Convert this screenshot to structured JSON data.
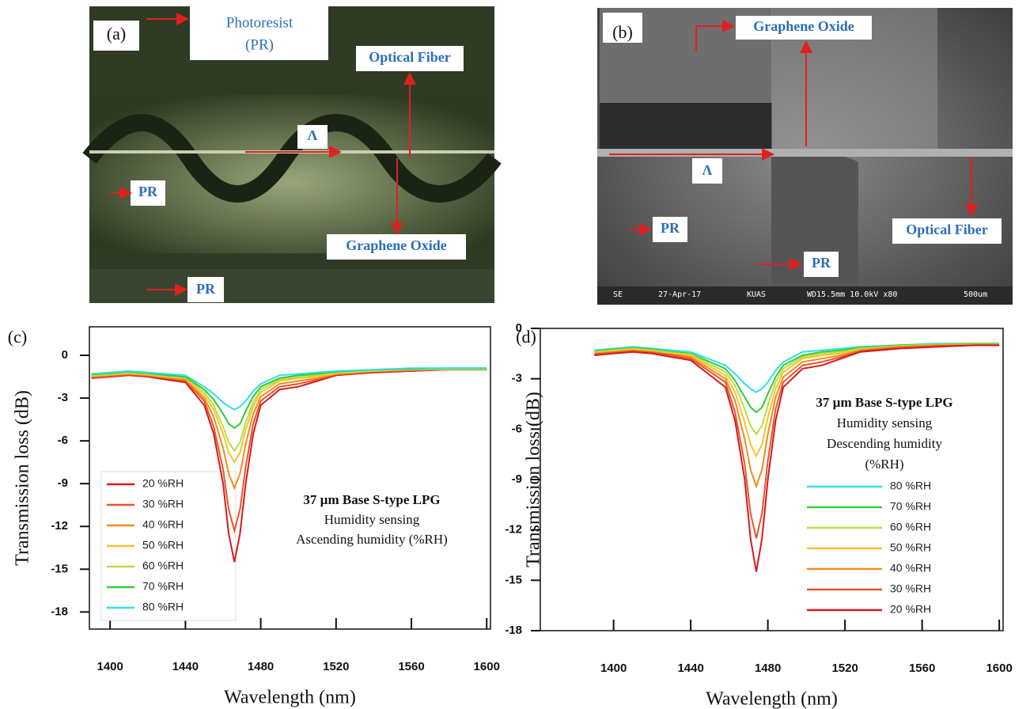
{
  "panels": {
    "a": {
      "label": "(a)",
      "annotations": [
        "Photoresist",
        "(PR)",
        "Optical Fiber",
        "Λ",
        "PR",
        "Graphene Oxide",
        "PR"
      ]
    },
    "b": {
      "label": "(b)",
      "annotations": [
        "Graphene Oxide",
        "Λ",
        "PR",
        "Optical Fiber",
        "PR"
      ],
      "footer": [
        "SE",
        "27-Apr-17",
        "KUAS",
        "WD15.5mm 10.0kV x80",
        "500um"
      ]
    }
  },
  "chart_data": [
    {
      "type": "line",
      "panel_label": "(c)",
      "xlabel": "Wavelength (nm)",
      "ylabel": "Transmission loss (dB)",
      "xlim": [
        1389,
        1602
      ],
      "xticks": [
        1400,
        1440,
        1480,
        1520,
        1560,
        1600
      ],
      "ylim": [
        -19.2,
        2
      ],
      "yticks": [
        0,
        -3,
        -6,
        -9,
        -12,
        -15,
        -18
      ],
      "annotations": [
        "37 µm Base S-type LPG",
        "Humidity sensing",
        "Ascending humidity  (%RH)"
      ],
      "x": [
        1390,
        1400,
        1410,
        1420,
        1430,
        1440,
        1450,
        1455,
        1460,
        1463,
        1466,
        1469,
        1472,
        1476,
        1480,
        1490,
        1500,
        1510,
        1520,
        1540,
        1560,
        1580,
        1600
      ],
      "series": [
        {
          "name": "20 %RH",
          "color": "#d7191c",
          "values": [
            -1.6,
            -1.5,
            -1.4,
            -1.5,
            -1.7,
            -1.9,
            -3.5,
            -5.5,
            -9.0,
            -12.5,
            -14.5,
            -12.5,
            -9.0,
            -5.5,
            -3.5,
            -2.4,
            -2.2,
            -1.8,
            -1.4,
            -1.2,
            -1.1,
            -1.0,
            -1.0
          ]
        },
        {
          "name": "30 %RH",
          "color": "#e8552a",
          "values": [
            -1.55,
            -1.45,
            -1.35,
            -1.45,
            -1.6,
            -1.8,
            -3.2,
            -5.0,
            -8.0,
            -10.8,
            -12.3,
            -10.8,
            -7.8,
            -4.8,
            -3.2,
            -2.2,
            -2.0,
            -1.7,
            -1.35,
            -1.15,
            -1.05,
            -1.0,
            -1.0
          ]
        },
        {
          "name": "40 %RH",
          "color": "#f08c1e",
          "values": [
            -1.5,
            -1.4,
            -1.3,
            -1.4,
            -1.55,
            -1.7,
            -3.0,
            -4.3,
            -6.5,
            -8.3,
            -9.3,
            -8.3,
            -6.2,
            -4.1,
            -2.9,
            -2.0,
            -1.8,
            -1.6,
            -1.3,
            -1.1,
            -1.0,
            -1.0,
            -1.0
          ]
        },
        {
          "name": "50 %RH",
          "color": "#f5c430",
          "values": [
            -1.45,
            -1.35,
            -1.25,
            -1.35,
            -1.5,
            -1.6,
            -2.8,
            -3.8,
            -5.5,
            -6.8,
            -7.5,
            -6.8,
            -5.2,
            -3.6,
            -2.6,
            -1.8,
            -1.6,
            -1.5,
            -1.25,
            -1.1,
            -1.0,
            -0.95,
            -0.95
          ]
        },
        {
          "name": "60 %RH",
          "color": "#b5e045",
          "values": [
            -1.4,
            -1.3,
            -1.2,
            -1.3,
            -1.45,
            -1.55,
            -2.6,
            -3.5,
            -5.0,
            -6.1,
            -6.7,
            -6.1,
            -4.7,
            -3.3,
            -2.4,
            -1.7,
            -1.5,
            -1.4,
            -1.2,
            -1.05,
            -0.95,
            -0.95,
            -0.95
          ]
        },
        {
          "name": "70 %RH",
          "color": "#33cc33",
          "values": [
            -1.35,
            -1.25,
            -1.15,
            -1.25,
            -1.4,
            -1.5,
            -2.4,
            -3.1,
            -4.1,
            -4.8,
            -5.1,
            -4.8,
            -3.9,
            -2.9,
            -2.2,
            -1.6,
            -1.4,
            -1.3,
            -1.15,
            -1.0,
            -0.95,
            -0.9,
            -0.9
          ]
        },
        {
          "name": "80 %RH",
          "color": "#33ddee",
          "values": [
            -1.3,
            -1.2,
            -1.1,
            -1.2,
            -1.3,
            -1.4,
            -2.2,
            -2.7,
            -3.3,
            -3.6,
            -3.8,
            -3.6,
            -3.2,
            -2.5,
            -2.0,
            -1.4,
            -1.3,
            -1.2,
            -1.1,
            -1.0,
            -0.9,
            -0.9,
            -0.9
          ]
        }
      ]
    },
    {
      "type": "line",
      "panel_label": "(d)",
      "xlabel": "Wavelength (nm)",
      "ylabel": "Transmission loss (dB)",
      "xlim": [
        1362,
        1602
      ],
      "xticks": [
        1400,
        1440,
        1480,
        1520,
        1560,
        1600
      ],
      "ylim": [
        -18,
        0
      ],
      "yticks": [
        0,
        -3,
        -6,
        -9,
        -12,
        -15,
        -18
      ],
      "annotations": [
        "37 µm Base S-type LPG",
        "Humidity sensing",
        "Descending humidity",
        "(%RH)"
      ],
      "x": [
        1390,
        1400,
        1410,
        1420,
        1430,
        1440,
        1458,
        1463,
        1468,
        1471,
        1474,
        1477,
        1480,
        1484,
        1488,
        1498,
        1508,
        1518,
        1528,
        1548,
        1568,
        1588,
        1600
      ],
      "series": [
        {
          "name": "80 %RH",
          "color": "#33ddee",
          "values": [
            -1.3,
            -1.2,
            -1.1,
            -1.2,
            -1.3,
            -1.4,
            -2.2,
            -2.7,
            -3.3,
            -3.6,
            -3.8,
            -3.6,
            -3.2,
            -2.5,
            -2.0,
            -1.4,
            -1.3,
            -1.2,
            -1.1,
            -1.0,
            -0.9,
            -0.9,
            -0.9
          ]
        },
        {
          "name": "70 %RH",
          "color": "#33cc33",
          "values": [
            -1.35,
            -1.25,
            -1.15,
            -1.25,
            -1.4,
            -1.5,
            -2.4,
            -3.1,
            -4.1,
            -4.7,
            -5.0,
            -4.7,
            -3.9,
            -2.9,
            -2.2,
            -1.6,
            -1.4,
            -1.3,
            -1.15,
            -1.0,
            -0.95,
            -0.9,
            -0.9
          ]
        },
        {
          "name": "60 %RH",
          "color": "#b5e045",
          "values": [
            -1.4,
            -1.3,
            -1.2,
            -1.3,
            -1.45,
            -1.55,
            -2.6,
            -3.4,
            -4.8,
            -5.8,
            -6.3,
            -5.8,
            -4.6,
            -3.2,
            -2.4,
            -1.7,
            -1.5,
            -1.4,
            -1.2,
            -1.05,
            -0.95,
            -0.95,
            -0.95
          ]
        },
        {
          "name": "50 %RH",
          "color": "#f5c430",
          "values": [
            -1.45,
            -1.35,
            -1.25,
            -1.35,
            -1.5,
            -1.6,
            -2.8,
            -3.8,
            -5.6,
            -6.9,
            -7.6,
            -6.9,
            -5.3,
            -3.6,
            -2.6,
            -1.8,
            -1.6,
            -1.5,
            -1.25,
            -1.1,
            -1.0,
            -0.95,
            -0.95
          ]
        },
        {
          "name": "40 %RH",
          "color": "#f08c1e",
          "values": [
            -1.5,
            -1.4,
            -1.3,
            -1.4,
            -1.55,
            -1.7,
            -3.0,
            -4.3,
            -6.6,
            -8.4,
            -9.4,
            -8.4,
            -6.3,
            -4.1,
            -2.9,
            -2.0,
            -1.8,
            -1.6,
            -1.3,
            -1.1,
            -1.0,
            -1.0,
            -1.0
          ]
        },
        {
          "name": "30 %RH",
          "color": "#e8552a",
          "values": [
            -1.55,
            -1.45,
            -1.35,
            -1.45,
            -1.6,
            -1.8,
            -3.2,
            -5.0,
            -8.1,
            -11.0,
            -12.5,
            -11.0,
            -7.9,
            -4.8,
            -3.2,
            -2.2,
            -2.0,
            -1.7,
            -1.35,
            -1.15,
            -1.05,
            -1.0,
            -1.0
          ]
        },
        {
          "name": "20 %RH",
          "color": "#d7191c",
          "values": [
            -1.6,
            -1.5,
            -1.4,
            -1.5,
            -1.7,
            -1.9,
            -3.5,
            -5.5,
            -9.0,
            -12.5,
            -14.5,
            -12.5,
            -9.0,
            -5.5,
            -3.5,
            -2.4,
            -2.2,
            -1.8,
            -1.4,
            -1.2,
            -1.1,
            -1.0,
            -1.0
          ]
        }
      ]
    }
  ]
}
